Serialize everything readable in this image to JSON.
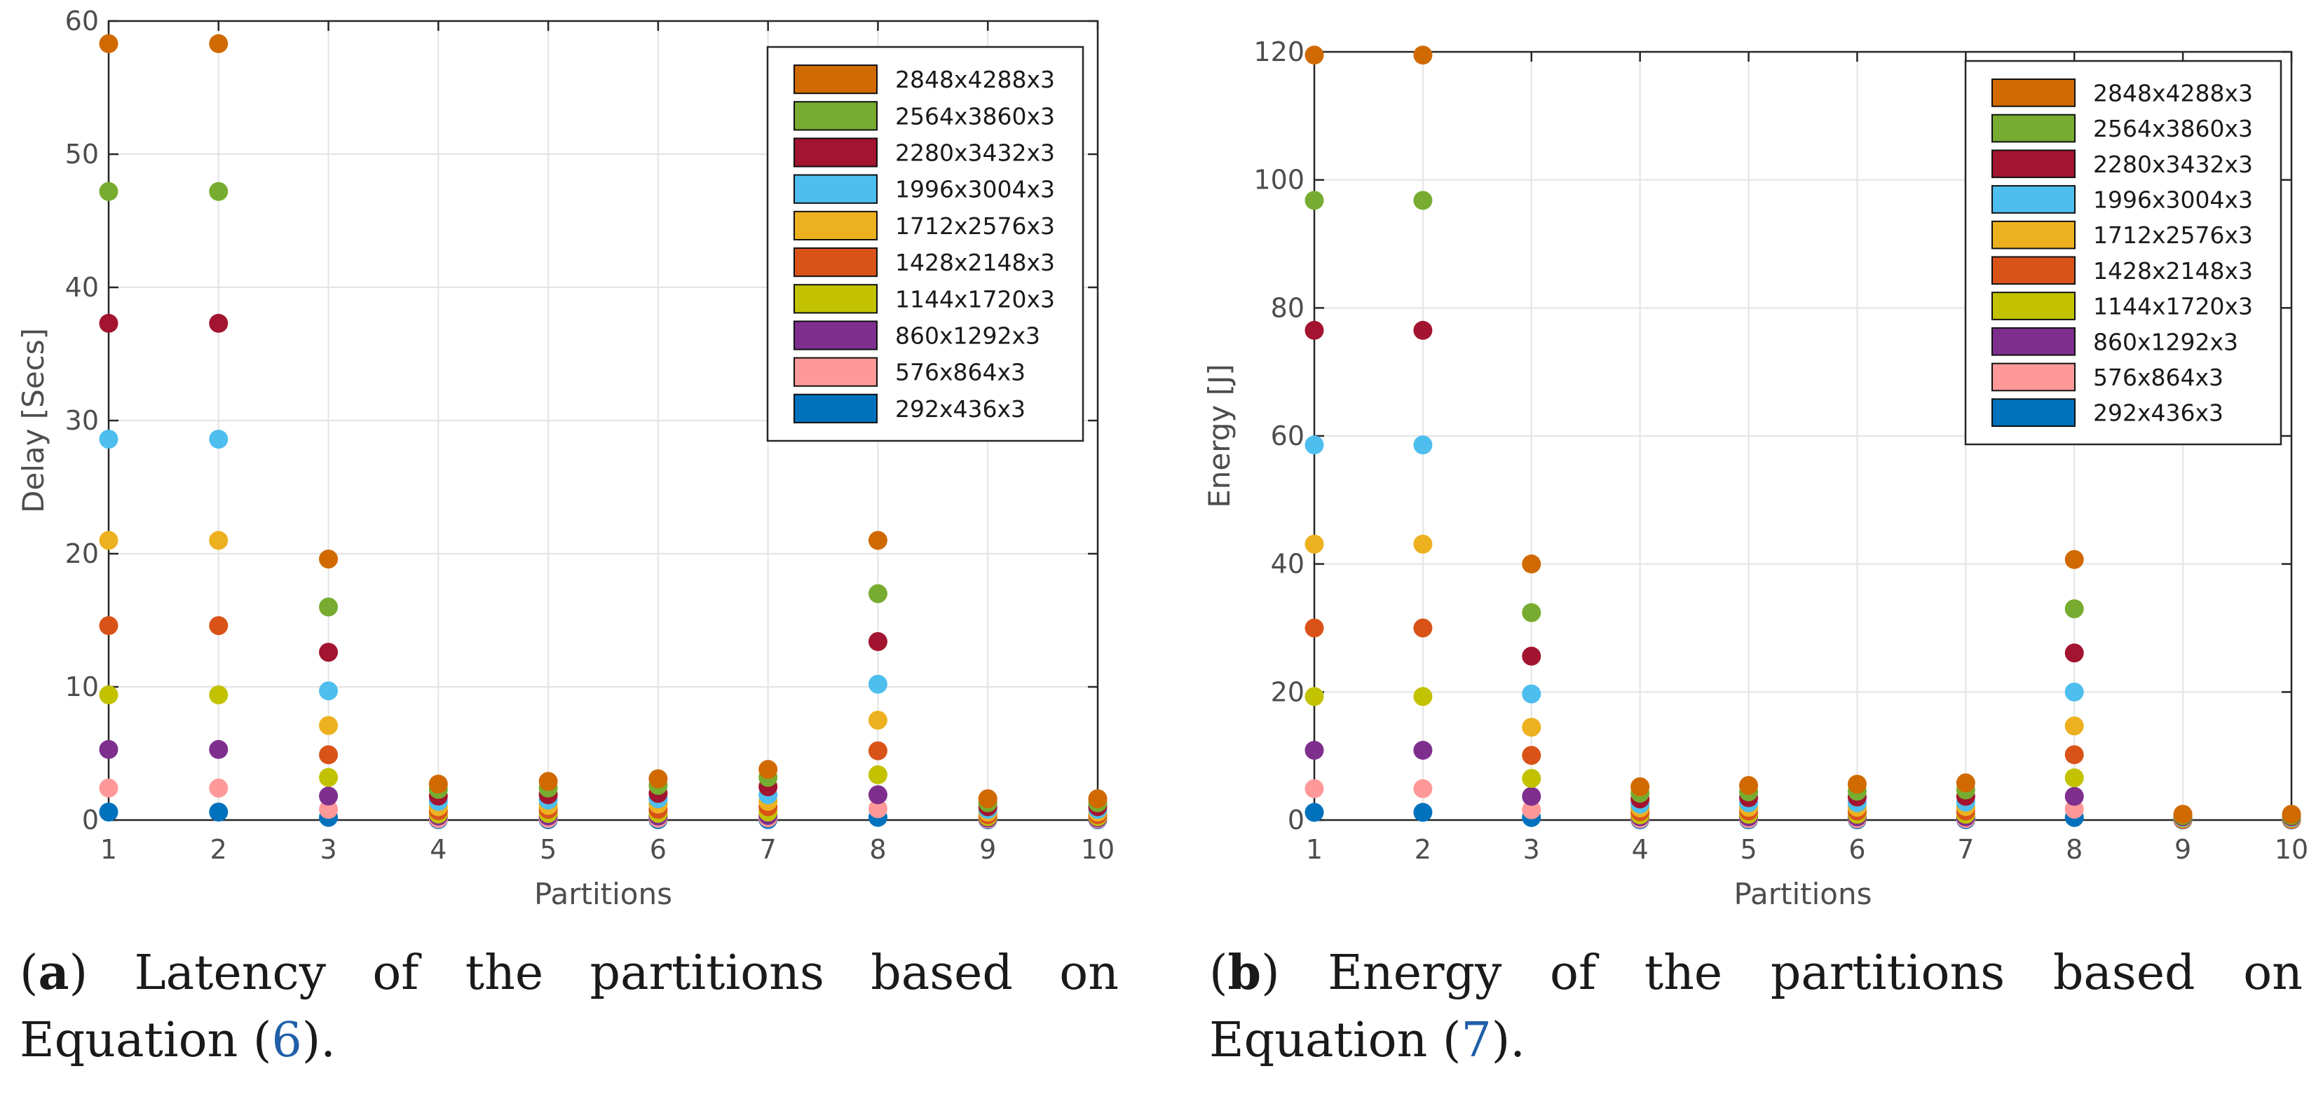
{
  "chart_data": [
    {
      "type": "scatter",
      "panel_label": "a",
      "caption_text": "Latency of the partitions based on Equation (",
      "caption_ref": "6",
      "caption_end": ").",
      "title": "",
      "xlabel": "Partitions",
      "ylabel": "Delay [Secs]",
      "xlim": [
        1,
        10
      ],
      "ylim": [
        0,
        60
      ],
      "xticks": [
        1,
        2,
        3,
        4,
        5,
        6,
        7,
        8,
        9,
        10
      ],
      "yticks": [
        0,
        10,
        20,
        30,
        40,
        50,
        60
      ],
      "grid": true,
      "legend_position": "top-right",
      "x": [
        1,
        2,
        3,
        4,
        5,
        6,
        7,
        8,
        9,
        10
      ],
      "series": [
        {
          "name": "2848x4288x3",
          "color": "#D06A00",
          "values": [
            58.3,
            58.3,
            19.6,
            2.7,
            2.9,
            3.1,
            3.8,
            21.0,
            1.6,
            1.6
          ]
        },
        {
          "name": "2564x3860x3",
          "color": "#77AC30",
          "values": [
            47.2,
            47.2,
            16.0,
            2.3,
            2.4,
            2.6,
            3.2,
            17.0,
            1.3,
            1.3
          ]
        },
        {
          "name": "2280x3432x3",
          "color": "#A2142F",
          "values": [
            37.3,
            37.3,
            12.6,
            1.8,
            1.9,
            2.0,
            2.5,
            13.4,
            1.0,
            1.0
          ]
        },
        {
          "name": "1996x3004x3",
          "color": "#4DBEEE",
          "values": [
            28.6,
            28.6,
            9.7,
            1.4,
            1.5,
            1.6,
            1.9,
            10.2,
            0.8,
            0.8
          ]
        },
        {
          "name": "1712x2576x3",
          "color": "#EDB120",
          "values": [
            21.0,
            21.0,
            7.1,
            1.0,
            1.1,
            1.2,
            1.4,
            7.5,
            0.6,
            0.6
          ]
        },
        {
          "name": "1428x2148x3",
          "color": "#D95319",
          "values": [
            14.6,
            14.6,
            4.9,
            0.7,
            0.8,
            0.8,
            1.0,
            5.2,
            0.4,
            0.4
          ]
        },
        {
          "name": "1144x1720x3",
          "color": "#C2C200",
          "values": [
            9.4,
            9.4,
            3.2,
            0.45,
            0.5,
            0.5,
            0.6,
            3.4,
            0.25,
            0.25
          ]
        },
        {
          "name": "860x1292x3",
          "color": "#7E2F8E",
          "values": [
            5.3,
            5.3,
            1.8,
            0.3,
            0.3,
            0.3,
            0.35,
            1.9,
            0.15,
            0.15
          ]
        },
        {
          "name": "576x864x3",
          "color": "#FF9999",
          "values": [
            2.4,
            2.4,
            0.8,
            0.1,
            0.12,
            0.13,
            0.16,
            0.85,
            0.07,
            0.07
          ]
        },
        {
          "name": "292x436x3",
          "color": "#0072BD",
          "values": [
            0.6,
            0.6,
            0.2,
            0.03,
            0.03,
            0.03,
            0.04,
            0.2,
            0.02,
            0.02
          ]
        }
      ]
    },
    {
      "type": "scatter",
      "panel_label": "b",
      "caption_text": "Energy of the partitions based on Equation (",
      "caption_ref": "7",
      "caption_end": ").",
      "title": "",
      "xlabel": "Partitions",
      "ylabel": "Energy [J]",
      "xlim": [
        1,
        10
      ],
      "ylim": [
        0,
        120
      ],
      "xticks": [
        1,
        2,
        3,
        4,
        5,
        6,
        7,
        8,
        9,
        10
      ],
      "yticks": [
        0,
        20,
        40,
        60,
        80,
        100,
        120
      ],
      "grid": true,
      "legend_position": "top-right",
      "x": [
        1,
        2,
        3,
        4,
        5,
        6,
        7,
        8,
        9,
        10
      ],
      "series": [
        {
          "name": "2848x4288x3",
          "color": "#D06A00",
          "values": [
            119.5,
            119.5,
            40.0,
            5.2,
            5.4,
            5.6,
            5.8,
            40.7,
            0.9,
            0.9
          ]
        },
        {
          "name": "2564x3860x3",
          "color": "#77AC30",
          "values": [
            96.8,
            96.8,
            32.4,
            4.2,
            4.4,
            4.5,
            4.7,
            33.0,
            0.7,
            0.7
          ]
        },
        {
          "name": "2280x3432x3",
          "color": "#A2142F",
          "values": [
            76.5,
            76.5,
            25.6,
            3.3,
            3.5,
            3.6,
            3.7,
            26.1,
            0.55,
            0.55
          ]
        },
        {
          "name": "1996x3004x3",
          "color": "#4DBEEE",
          "values": [
            58.6,
            58.6,
            19.7,
            2.5,
            2.7,
            2.7,
            2.8,
            20.0,
            0.4,
            0.4
          ]
        },
        {
          "name": "1712x2576x3",
          "color": "#EDB120",
          "values": [
            43.1,
            43.1,
            14.5,
            1.9,
            2.0,
            2.0,
            2.1,
            14.7,
            0.3,
            0.3
          ]
        },
        {
          "name": "1428x2148x3",
          "color": "#D95319",
          "values": [
            30.0,
            30.0,
            10.1,
            1.3,
            1.4,
            1.4,
            1.4,
            10.2,
            0.2,
            0.2
          ]
        },
        {
          "name": "1144x1720x3",
          "color": "#C2C200",
          "values": [
            19.3,
            19.3,
            6.5,
            0.8,
            0.9,
            0.9,
            0.9,
            6.6,
            0.14,
            0.14
          ]
        },
        {
          "name": "860x1292x3",
          "color": "#7E2F8E",
          "values": [
            10.9,
            10.9,
            3.7,
            0.5,
            0.5,
            0.5,
            0.5,
            3.7,
            0.08,
            0.08
          ]
        },
        {
          "name": "576x864x3",
          "color": "#FF9999",
          "values": [
            4.9,
            4.9,
            1.6,
            0.2,
            0.2,
            0.2,
            0.22,
            1.7,
            0.04,
            0.04
          ]
        },
        {
          "name": "292x436x3",
          "color": "#0072BD",
          "values": [
            1.2,
            1.2,
            0.4,
            0.05,
            0.05,
            0.05,
            0.06,
            0.4,
            0.01,
            0.01
          ]
        }
      ]
    }
  ]
}
